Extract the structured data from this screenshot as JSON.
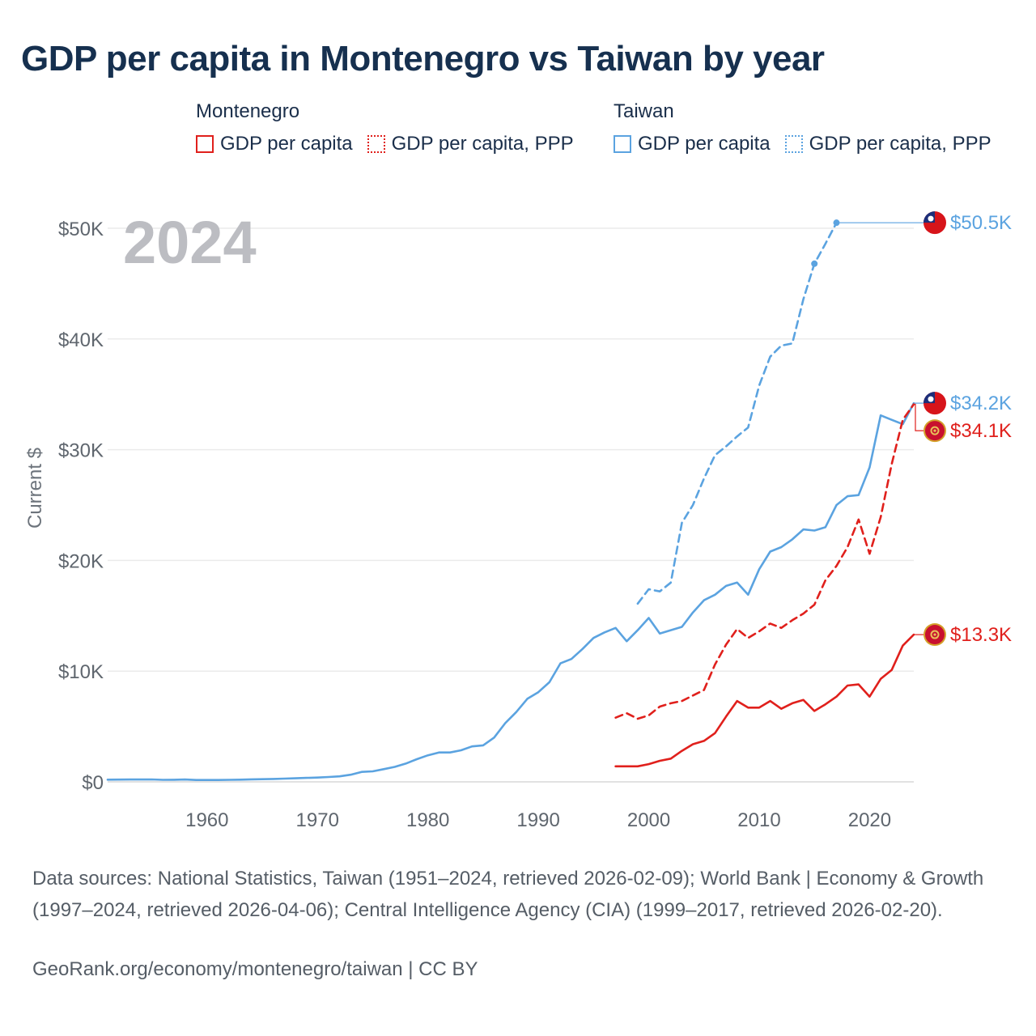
{
  "title": "GDP per capita in Montenegro vs Taiwan by year",
  "legend": {
    "groups": [
      {
        "name": "Montenegro",
        "items": [
          {
            "label": "GDP per capita",
            "color": "#e0201c",
            "style": "solid"
          },
          {
            "label": "GDP per capita, PPP",
            "color": "#e0201c",
            "style": "dotted"
          }
        ]
      },
      {
        "name": "Taiwan",
        "items": [
          {
            "label": "GDP per capita",
            "color": "#5ba3e0",
            "style": "solid"
          },
          {
            "label": "GDP per capita, PPP",
            "color": "#5ba3e0",
            "style": "dotted"
          }
        ]
      }
    ]
  },
  "footer": {
    "sources": "Data sources: National Statistics, Taiwan (1951–2024, retrieved 2026-02-09); World Bank | Economy & Growth (1997–2024, retrieved 2026-04-06); Central Intelligence Agency (CIA) (1999–2017, retrieved 2026-02-20).",
    "credit": "GeoRank.org/economy/montenegro/taiwan | CC BY"
  },
  "chart_data": {
    "type": "line",
    "year_label": "2024",
    "ylabel": "Current $",
    "xlim": [
      1951,
      2024
    ],
    "ylim": [
      0,
      50000
    ],
    "x_ticks": [
      1960,
      1970,
      1980,
      1990,
      2000,
      2010,
      2020
    ],
    "y_ticks": [
      {
        "value": 0,
        "label": "$0"
      },
      {
        "value": 10000,
        "label": "$10K"
      },
      {
        "value": 20000,
        "label": "$20K"
      },
      {
        "value": 30000,
        "label": "$30K"
      },
      {
        "value": 40000,
        "label": "$40K"
      },
      {
        "value": 50000,
        "label": "$50K"
      }
    ],
    "series": [
      {
        "name": "Taiwan GDP per capita",
        "country": "Taiwan",
        "color": "#5ba3e0",
        "dashed": false,
        "end_label": "$34.2K",
        "x": [
          1951,
          1952,
          1953,
          1954,
          1955,
          1956,
          1957,
          1958,
          1959,
          1960,
          1961,
          1962,
          1963,
          1964,
          1965,
          1966,
          1967,
          1968,
          1969,
          1970,
          1971,
          1972,
          1973,
          1974,
          1975,
          1976,
          1977,
          1978,
          1979,
          1980,
          1981,
          1982,
          1983,
          1984,
          1985,
          1986,
          1987,
          1988,
          1989,
          1990,
          1991,
          1992,
          1993,
          1994,
          1995,
          1996,
          1997,
          1998,
          1999,
          2000,
          2001,
          2002,
          2003,
          2004,
          2005,
          2006,
          2007,
          2008,
          2009,
          2010,
          2011,
          2012,
          2013,
          2014,
          2015,
          2016,
          2017,
          2018,
          2019,
          2020,
          2021,
          2022,
          2023,
          2024
        ],
        "values": [
          200,
          205,
          210,
          215,
          220,
          180,
          190,
          210,
          170,
          165,
          170,
          185,
          200,
          225,
          240,
          260,
          290,
          320,
          360,
          390,
          440,
          500,
          640,
          900,
          950,
          1150,
          1350,
          1650,
          2050,
          2400,
          2650,
          2650,
          2850,
          3200,
          3300,
          4000,
          5300,
          6300,
          7500,
          8100,
          9000,
          10700,
          11100,
          12000,
          13000,
          13500,
          13900,
          12700,
          13700,
          14800,
          13400,
          13700,
          14000,
          15300,
          16400,
          16900,
          17700,
          18000,
          16900,
          19200,
          20800,
          21200,
          21900,
          22800,
          22700,
          23000,
          25000,
          25800,
          25900,
          28400,
          33100,
          32700,
          32300,
          34200
        ]
      },
      {
        "name": "Taiwan GDP per capita, PPP",
        "country": "Taiwan",
        "color": "#5ba3e0",
        "dashed": true,
        "end_label": "$50.5K",
        "x": [
          1999,
          2000,
          2001,
          2002,
          2003,
          2004,
          2005,
          2006,
          2007,
          2008,
          2009,
          2010,
          2011,
          2012,
          2013,
          2014,
          2015,
          2016,
          2017
        ],
        "values": [
          16100,
          17400,
          17200,
          18000,
          23400,
          25000,
          27400,
          29500,
          30300,
          31200,
          32000,
          35800,
          38400,
          39400,
          39600,
          43600,
          46800,
          48600,
          50500
        ]
      },
      {
        "name": "Montenegro GDP per capita",
        "country": "Montenegro",
        "color": "#e0201c",
        "dashed": false,
        "end_label": "$13.3K",
        "x": [
          1997,
          1998,
          1999,
          2000,
          2001,
          2002,
          2003,
          2004,
          2005,
          2006,
          2007,
          2008,
          2009,
          2010,
          2011,
          2012,
          2013,
          2014,
          2015,
          2016,
          2017,
          2018,
          2019,
          2020,
          2021,
          2022,
          2023,
          2024
        ],
        "values": [
          1400,
          1400,
          1400,
          1600,
          1900,
          2100,
          2800,
          3400,
          3700,
          4400,
          5900,
          7300,
          6700,
          6700,
          7300,
          6600,
          7100,
          7400,
          6400,
          7000,
          7700,
          8700,
          8800,
          7700,
          9300,
          10100,
          12300,
          13300
        ]
      },
      {
        "name": "Montenegro GDP per capita, PPP",
        "country": "Montenegro",
        "color": "#e0201c",
        "dashed": true,
        "end_label": "$34.1K",
        "x": [
          1997,
          1998,
          1999,
          2000,
          2001,
          2002,
          2003,
          2004,
          2005,
          2006,
          2007,
          2008,
          2009,
          2010,
          2011,
          2012,
          2013,
          2014,
          2015,
          2016,
          2017,
          2018,
          2019,
          2020,
          2021,
          2022,
          2023,
          2024
        ],
        "values": [
          5800,
          6200,
          5700,
          6000,
          6800,
          7100,
          7300,
          7800,
          8300,
          10600,
          12400,
          13800,
          13000,
          13600,
          14300,
          13900,
          14600,
          15200,
          16000,
          18200,
          19500,
          21200,
          23700,
          20600,
          23900,
          28700,
          32700,
          34100
        ]
      }
    ]
  }
}
